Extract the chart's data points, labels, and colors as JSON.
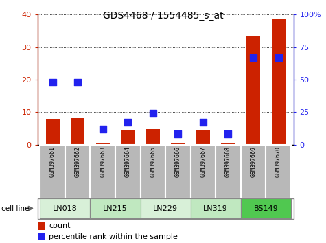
{
  "title": "GDS4468 / 1554485_s_at",
  "samples": [
    "GSM397661",
    "GSM397662",
    "GSM397663",
    "GSM397664",
    "GSM397665",
    "GSM397666",
    "GSM397667",
    "GSM397668",
    "GSM397669",
    "GSM397670"
  ],
  "count_values": [
    8.0,
    8.2,
    0.6,
    4.5,
    4.8,
    0.6,
    4.5,
    0.6,
    33.5,
    38.5
  ],
  "percentile_values": [
    48,
    48,
    12,
    17,
    24,
    8,
    17,
    8,
    67,
    67
  ],
  "cell_lines": [
    {
      "name": "LN018",
      "start": 0,
      "end": 1,
      "color": "#d8f0d8"
    },
    {
      "name": "LN215",
      "start": 2,
      "end": 3,
      "color": "#c0e8c0"
    },
    {
      "name": "LN229",
      "start": 4,
      "end": 5,
      "color": "#d8f0d8"
    },
    {
      "name": "LN319",
      "start": 6,
      "end": 7,
      "color": "#c0e8c0"
    },
    {
      "name": "BS149",
      "start": 8,
      "end": 9,
      "color": "#50c850"
    }
  ],
  "count_color": "#cc2200",
  "percentile_color": "#2222ee",
  "left_ylim": [
    0,
    40
  ],
  "right_ylim": [
    0,
    100
  ],
  "left_yticks": [
    0,
    10,
    20,
    30,
    40
  ],
  "right_yticks": [
    0,
    25,
    50,
    75,
    100
  ],
  "left_yticklabels": [
    "0",
    "10",
    "20",
    "30",
    "40"
  ],
  "right_yticklabels": [
    "0",
    "25",
    "50",
    "75",
    "100%"
  ],
  "bar_width": 0.55,
  "marker_size": 7,
  "sample_bg": "#b8b8b8"
}
